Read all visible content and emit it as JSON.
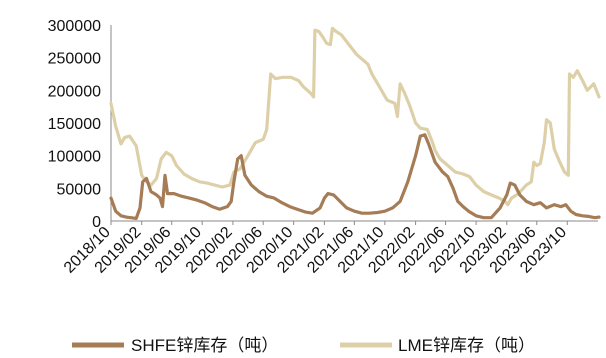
{
  "chart_data": {
    "type": "line",
    "ylim": [
      0,
      300000
    ],
    "yticks": [
      0,
      50000,
      100000,
      150000,
      200000,
      250000,
      300000
    ],
    "xlim": [
      "2018-10",
      "2024-02"
    ],
    "xticks": [
      "2018/10",
      "2019/02",
      "2019/06",
      "2019/10",
      "2020/02",
      "2020/06",
      "2020/10",
      "2021/02",
      "2021/06",
      "2021/10",
      "2022/02",
      "2022/06",
      "2022/10",
      "2023/02",
      "2023/06",
      "2023/10"
    ],
    "grid": false,
    "legend": "bottom",
    "series": [
      {
        "name": "SHFE锌库存（吨）",
        "color": "#a57c55",
        "points": [
          [
            "2018-10-01",
            35000
          ],
          [
            "2018-10-20",
            15000
          ],
          [
            "2018-11-10",
            8000
          ],
          [
            "2018-12-01",
            6000
          ],
          [
            "2018-12-20",
            5000
          ],
          [
            "2019-01-10",
            4000
          ],
          [
            "2019-01-25",
            20000
          ],
          [
            "2019-02-05",
            60000
          ],
          [
            "2019-02-20",
            65000
          ],
          [
            "2019-03-10",
            45000
          ],
          [
            "2019-04-01",
            40000
          ],
          [
            "2019-04-15",
            35000
          ],
          [
            "2019-04-25",
            22000
          ],
          [
            "2019-05-05",
            70000
          ],
          [
            "2019-05-15",
            42000
          ],
          [
            "2019-06-10",
            42000
          ],
          [
            "2019-07-10",
            38000
          ],
          [
            "2019-08-10",
            35000
          ],
          [
            "2019-09-10",
            32000
          ],
          [
            "2019-10-10",
            28000
          ],
          [
            "2019-11-10",
            22000
          ],
          [
            "2019-12-10",
            18000
          ],
          [
            "2020-01-10",
            22000
          ],
          [
            "2020-01-25",
            30000
          ],
          [
            "2020-02-05",
            60000
          ],
          [
            "2020-02-20",
            95000
          ],
          [
            "2020-03-05",
            100000
          ],
          [
            "2020-03-20",
            70000
          ],
          [
            "2020-04-15",
            55000
          ],
          [
            "2020-05-15",
            45000
          ],
          [
            "2020-06-15",
            38000
          ],
          [
            "2020-07-15",
            35000
          ],
          [
            "2020-08-15",
            28000
          ],
          [
            "2020-09-15",
            22000
          ],
          [
            "2020-10-15",
            18000
          ],
          [
            "2020-11-15",
            14000
          ],
          [
            "2020-12-15",
            12000
          ],
          [
            "2021-01-15",
            20000
          ],
          [
            "2021-02-01",
            35000
          ],
          [
            "2021-02-15",
            42000
          ],
          [
            "2021-03-10",
            40000
          ],
          [
            "2021-04-05",
            30000
          ],
          [
            "2021-05-01",
            20000
          ],
          [
            "2021-06-01",
            15000
          ],
          [
            "2021-07-01",
            12000
          ],
          [
            "2021-08-01",
            12000
          ],
          [
            "2021-09-01",
            13000
          ],
          [
            "2021-10-01",
            15000
          ],
          [
            "2021-11-01",
            20000
          ],
          [
            "2021-12-01",
            30000
          ],
          [
            "2022-01-01",
            60000
          ],
          [
            "2022-02-01",
            100000
          ],
          [
            "2022-02-20",
            130000
          ],
          [
            "2022-03-10",
            132000
          ],
          [
            "2022-03-25",
            118000
          ],
          [
            "2022-04-20",
            90000
          ],
          [
            "2022-05-20",
            75000
          ],
          [
            "2022-06-10",
            68000
          ],
          [
            "2022-07-01",
            50000
          ],
          [
            "2022-07-20",
            30000
          ],
          [
            "2022-08-10",
            22000
          ],
          [
            "2022-09-01",
            15000
          ],
          [
            "2022-10-01",
            8000
          ],
          [
            "2022-11-01",
            5000
          ],
          [
            "2022-12-01",
            5000
          ],
          [
            "2023-01-05",
            20000
          ],
          [
            "2023-02-01",
            40000
          ],
          [
            "2023-02-15",
            58000
          ],
          [
            "2023-03-05",
            55000
          ],
          [
            "2023-03-25",
            40000
          ],
          [
            "2023-04-20",
            30000
          ],
          [
            "2023-05-20",
            25000
          ],
          [
            "2023-06-15",
            28000
          ],
          [
            "2023-07-10",
            20000
          ],
          [
            "2023-08-10",
            25000
          ],
          [
            "2023-09-05",
            22000
          ],
          [
            "2023-09-25",
            25000
          ],
          [
            "2023-10-15",
            15000
          ],
          [
            "2023-11-05",
            10000
          ],
          [
            "2023-12-01",
            8000
          ],
          [
            "2023-12-25",
            7000
          ],
          [
            "2024-01-20",
            5000
          ],
          [
            "2024-02-05",
            6000
          ]
        ]
      },
      {
        "name": "LME锌库存（吨）",
        "color": "#ddd0a8",
        "points": [
          [
            "2018-10-01",
            180000
          ],
          [
            "2018-10-20",
            145000
          ],
          [
            "2018-11-10",
            118000
          ],
          [
            "2018-11-25",
            128000
          ],
          [
            "2018-12-15",
            130000
          ],
          [
            "2019-01-10",
            115000
          ],
          [
            "2019-02-01",
            70000
          ],
          [
            "2019-02-20",
            60000
          ],
          [
            "2019-03-10",
            55000
          ],
          [
            "2019-04-01",
            65000
          ],
          [
            "2019-04-20",
            95000
          ],
          [
            "2019-05-10",
            105000
          ],
          [
            "2019-06-01",
            100000
          ],
          [
            "2019-06-20",
            85000
          ],
          [
            "2019-07-20",
            72000
          ],
          [
            "2019-08-20",
            65000
          ],
          [
            "2019-09-20",
            60000
          ],
          [
            "2019-10-20",
            58000
          ],
          [
            "2019-11-20",
            55000
          ],
          [
            "2019-12-20",
            52000
          ],
          [
            "2020-01-20",
            55000
          ],
          [
            "2020-02-05",
            75000
          ],
          [
            "2020-03-01",
            80000
          ],
          [
            "2020-04-01",
            100000
          ],
          [
            "2020-05-01",
            120000
          ],
          [
            "2020-06-01",
            125000
          ],
          [
            "2020-06-15",
            140000
          ],
          [
            "2020-07-01",
            225000
          ],
          [
            "2020-07-20",
            218000
          ],
          [
            "2020-08-20",
            220000
          ],
          [
            "2020-09-20",
            220000
          ],
          [
            "2020-10-20",
            215000
          ],
          [
            "2020-11-10",
            205000
          ],
          [
            "2020-12-10",
            195000
          ],
          [
            "2020-12-20",
            190000
          ],
          [
            "2020-12-25",
            292000
          ],
          [
            "2021-01-10",
            290000
          ],
          [
            "2021-01-25",
            282000
          ],
          [
            "2021-02-10",
            272000
          ],
          [
            "2021-02-25",
            270000
          ],
          [
            "2021-03-05",
            295000
          ],
          [
            "2021-03-20",
            290000
          ],
          [
            "2021-04-10",
            285000
          ],
          [
            "2021-05-10",
            270000
          ],
          [
            "2021-06-10",
            255000
          ],
          [
            "2021-07-10",
            245000
          ],
          [
            "2021-07-25",
            240000
          ],
          [
            "2021-08-10",
            225000
          ],
          [
            "2021-09-10",
            205000
          ],
          [
            "2021-10-10",
            185000
          ],
          [
            "2021-11-10",
            180000
          ],
          [
            "2021-11-20",
            160000
          ],
          [
            "2021-12-01",
            210000
          ],
          [
            "2021-12-20",
            195000
          ],
          [
            "2022-01-10",
            175000
          ],
          [
            "2022-02-01",
            150000
          ],
          [
            "2022-02-20",
            142000
          ],
          [
            "2022-03-20",
            140000
          ],
          [
            "2022-04-10",
            120000
          ],
          [
            "2022-04-20",
            108000
          ],
          [
            "2022-05-10",
            95000
          ],
          [
            "2022-06-10",
            85000
          ],
          [
            "2022-07-10",
            75000
          ],
          [
            "2022-08-10",
            72000
          ],
          [
            "2022-09-05",
            68000
          ],
          [
            "2022-10-01",
            55000
          ],
          [
            "2022-11-01",
            45000
          ],
          [
            "2022-12-01",
            40000
          ],
          [
            "2023-01-01",
            35000
          ],
          [
            "2023-01-25",
            30000
          ],
          [
            "2023-02-05",
            25000
          ],
          [
            "2023-02-20",
            35000
          ],
          [
            "2023-03-20",
            42000
          ],
          [
            "2023-04-20",
            55000
          ],
          [
            "2023-05-10",
            60000
          ],
          [
            "2023-05-20",
            90000
          ],
          [
            "2023-06-01",
            85000
          ],
          [
            "2023-06-15",
            88000
          ],
          [
            "2023-07-01",
            120000
          ],
          [
            "2023-07-10",
            155000
          ],
          [
            "2023-07-25",
            150000
          ],
          [
            "2023-08-10",
            110000
          ],
          [
            "2023-09-01",
            90000
          ],
          [
            "2023-09-20",
            75000
          ],
          [
            "2023-10-05",
            70000
          ],
          [
            "2023-10-10",
            225000
          ],
          [
            "2023-10-25",
            220000
          ],
          [
            "2023-11-10",
            230000
          ],
          [
            "2023-12-01",
            215000
          ],
          [
            "2023-12-20",
            200000
          ],
          [
            "2024-01-15",
            210000
          ],
          [
            "2024-02-05",
            190000
          ]
        ]
      }
    ]
  }
}
